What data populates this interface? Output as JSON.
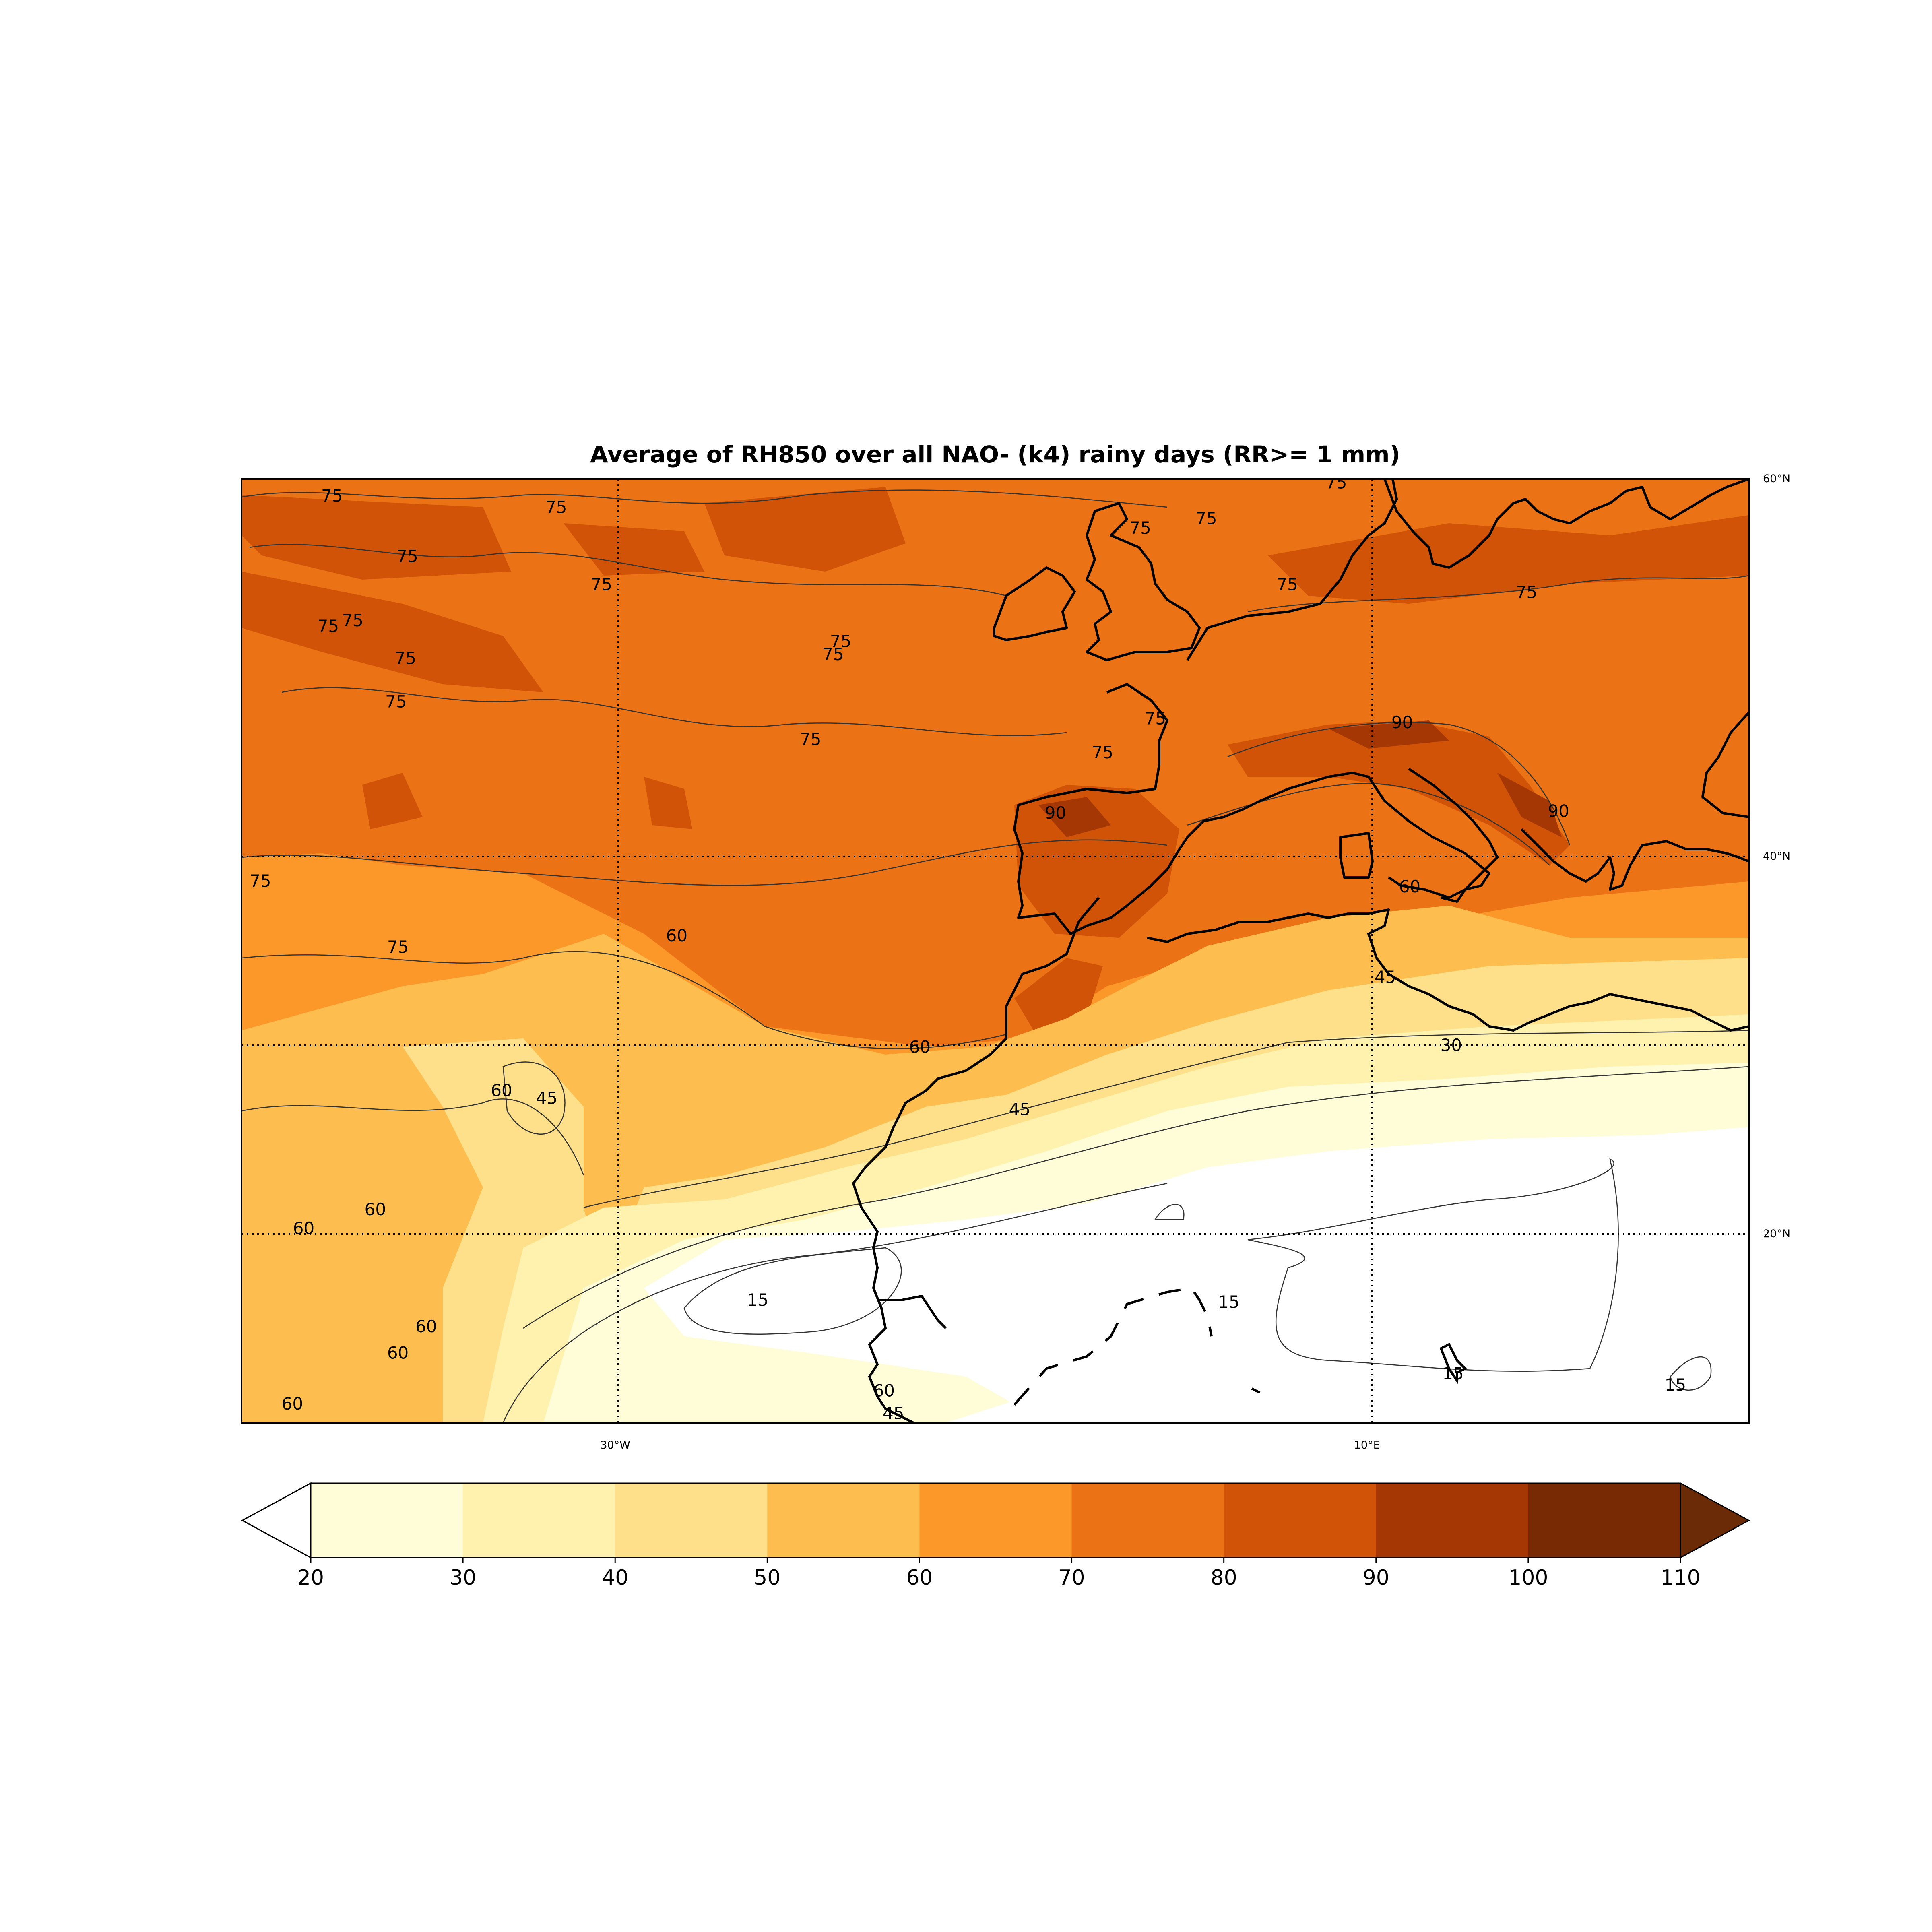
{
  "title": "Average of RH850  over all NAO- (k4) rainy days (RR>= 1 mm)",
  "map": {
    "extent": {
      "lon_min": -50,
      "lon_max": 30,
      "lat_min": 10,
      "lat_max": 60
    },
    "meridians_labeled": [
      {
        "lon": -30,
        "label": "30°W"
      },
      {
        "lon": 10,
        "label": "10°E"
      }
    ],
    "parallels_labeled": [
      {
        "lat": 60,
        "label": "60°N"
      },
      {
        "lat": 40,
        "label": "40°N"
      },
      {
        "lat": 20,
        "label": "20°N"
      }
    ],
    "gridlines": {
      "lons": [
        -30,
        10
      ],
      "lats": [
        20,
        30,
        40
      ],
      "style": "dotted"
    },
    "contour_labels": [
      {
        "text": "75",
        "lon": -45.2,
        "lat": 59.1
      },
      {
        "text": "75",
        "lon": -33.3,
        "lat": 58.5
      },
      {
        "text": "75",
        "lon": -41.2,
        "lat": 55.9
      },
      {
        "text": "75",
        "lon": -30.9,
        "lat": 54.4
      },
      {
        "text": "75",
        "lon": -45.4,
        "lat": 52.2
      },
      {
        "text": "75",
        "lon": -44.1,
        "lat": 52.5
      },
      {
        "text": "75",
        "lon": -41.3,
        "lat": 50.5
      },
      {
        "text": "75",
        "lon": -41.8,
        "lat": 48.2
      },
      {
        "text": "75",
        "lon": -49.0,
        "lat": 38.7
      },
      {
        "text": "75",
        "lon": -41.7,
        "lat": 35.2
      },
      {
        "text": "75",
        "lon": -18.2,
        "lat": 51.4
      },
      {
        "text": "75",
        "lon": -18.6,
        "lat": 50.7
      },
      {
        "text": "75",
        "lon": -19.8,
        "lat": 46.2
      },
      {
        "text": "60",
        "lon": -26.9,
        "lat": 35.8
      },
      {
        "text": "60",
        "lon": -36.2,
        "lat": 27.6
      },
      {
        "text": "60",
        "lon": -46.7,
        "lat": 20.3
      },
      {
        "text": "60",
        "lon": -42.9,
        "lat": 21.3
      },
      {
        "text": "60",
        "lon": -40.2,
        "lat": 15.1
      },
      {
        "text": "60",
        "lon": -41.7,
        "lat": 13.7
      },
      {
        "text": "60",
        "lon": -47.3,
        "lat": 11.0
      },
      {
        "text": "60",
        "lon": -14.0,
        "lat": 29.9
      },
      {
        "text": "60",
        "lon": 12.0,
        "lat": 38.4
      },
      {
        "text": "45",
        "lon": -33.8,
        "lat": 27.2
      },
      {
        "text": "45",
        "lon": -8.7,
        "lat": 26.6
      },
      {
        "text": "45",
        "lon": 10.7,
        "lat": 33.6
      },
      {
        "text": "45",
        "lon": -15.4,
        "lat": 10.5
      },
      {
        "text": "90",
        "lon": -6.8,
        "lat": 42.3
      },
      {
        "text": "90",
        "lon": 11.6,
        "lat": 47.1
      },
      {
        "text": "90",
        "lon": 19.9,
        "lat": 42.4
      },
      {
        "text": "75",
        "lon": -1.5,
        "lat": 47.3
      },
      {
        "text": "75",
        "lon": -4.3,
        "lat": 45.5
      },
      {
        "text": "75",
        "lon": -2.3,
        "lat": 57.4
      },
      {
        "text": "75",
        "lon": 1.2,
        "lat": 57.9
      },
      {
        "text": "75",
        "lon": 5.5,
        "lat": 54.4
      },
      {
        "text": "75",
        "lon": 8.1,
        "lat": 59.8
      },
      {
        "text": "75",
        "lon": 18.2,
        "lat": 54.0
      },
      {
        "text": "30",
        "lon": 14.2,
        "lat": 30.0
      },
      {
        "text": "15",
        "lon": -22.6,
        "lat": 16.5
      },
      {
        "text": "15",
        "lon": 2.4,
        "lat": 16.4
      },
      {
        "text": "15",
        "lon": 14.3,
        "lat": 12.6
      },
      {
        "text": "15",
        "lon": 26.1,
        "lat": 12.0
      },
      {
        "text": "60",
        "lon": -15.9,
        "lat": 11.7
      }
    ]
  },
  "colorbar": {
    "levels": [
      20,
      30,
      40,
      50,
      60,
      70,
      80,
      90,
      100,
      110
    ],
    "tick_labels": [
      "20",
      "30",
      "40",
      "50",
      "60",
      "70",
      "80",
      "90",
      "100",
      "110"
    ],
    "colors": [
      "#fffdd8",
      "#fff2af",
      "#fedf8a",
      "#fdbe4f",
      "#fc9829",
      "#ec7216",
      "#d15307",
      "#a53705",
      "#772a04"
    ],
    "under_color": "#ffffff",
    "over_color": "#6b2b07",
    "extend": "both"
  }
}
